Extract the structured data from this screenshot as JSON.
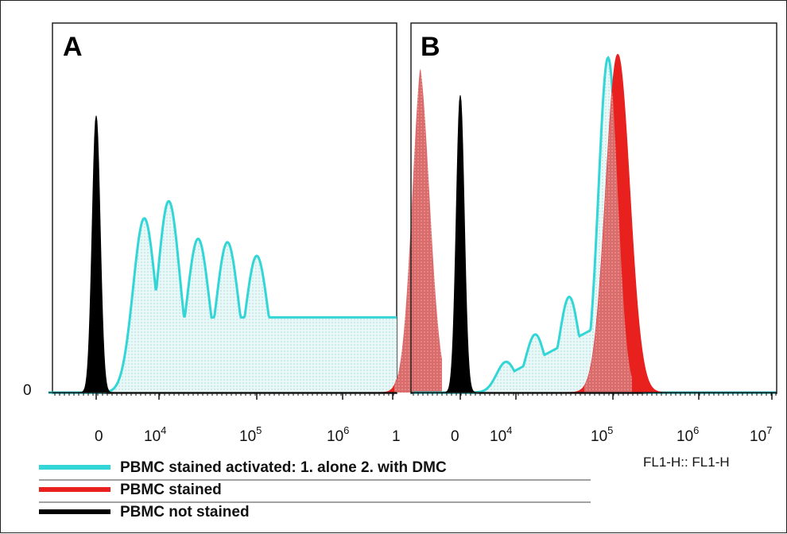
{
  "chart_data": {
    "type": "area",
    "panels": [
      {
        "label": "A",
        "xscale": "log",
        "y_zero_label": "0",
        "x_tick_labels": [
          {
            "base": "0",
            "exp": ""
          },
          {
            "base": "10",
            "exp": "4"
          },
          {
            "base": "10",
            "exp": "5"
          },
          {
            "base": "10",
            "exp": "6"
          },
          {
            "base": "1",
            "exp": ""
          }
        ],
        "series": [
          {
            "key": "not_stained",
            "peaks": [
              {
                "x": 0.5,
                "height": 0.81
              }
            ]
          },
          {
            "key": "stained",
            "peaks": [
              {
                "x": 6.7,
                "height": 0.99
              }
            ]
          },
          {
            "key": "activated",
            "peaks": [
              {
                "x": 3.85,
                "height": 0.51
              },
              {
                "x": 4.1,
                "height": 0.56
              },
              {
                "x": 4.4,
                "height": 0.45
              },
              {
                "x": 4.7,
                "height": 0.44
              },
              {
                "x": 5.0,
                "height": 0.4
              },
              {
                "x": 6.65,
                "height": 0.97
              }
            ]
          }
        ]
      },
      {
        "label": "B",
        "xscale": "log",
        "x_tick_labels": [
          {
            "base": "0",
            "exp": ""
          },
          {
            "base": "10",
            "exp": "4"
          },
          {
            "base": "10",
            "exp": "5"
          },
          {
            "base": "10",
            "exp": "6"
          },
          {
            "base": "10",
            "exp": "7"
          }
        ],
        "axis_title": "FL1-H:: FL1-H",
        "series": [
          {
            "key": "not_stained",
            "peaks": [
              {
                "x": 0.5,
                "height": 0.87
              }
            ]
          },
          {
            "key": "stained",
            "peaks": [
              {
                "x": 5.05,
                "height": 0.99
              }
            ]
          },
          {
            "key": "activated",
            "peaks": [
              {
                "x": 3.9,
                "height": 0.09
              },
              {
                "x": 4.2,
                "height": 0.17
              },
              {
                "x": 4.55,
                "height": 0.28
              },
              {
                "x": 4.95,
                "height": 0.98
              }
            ]
          }
        ]
      }
    ],
    "legend": [
      {
        "key": "activated",
        "label": "PBMC stained activated: 1. alone 2. with DMC",
        "color": "#33d6d6"
      },
      {
        "key": "stained",
        "label": "PBMC stained",
        "color": "#e8201e"
      },
      {
        "key": "not_stained",
        "label": "PBMC not stained",
        "color": "#000000"
      }
    ]
  }
}
